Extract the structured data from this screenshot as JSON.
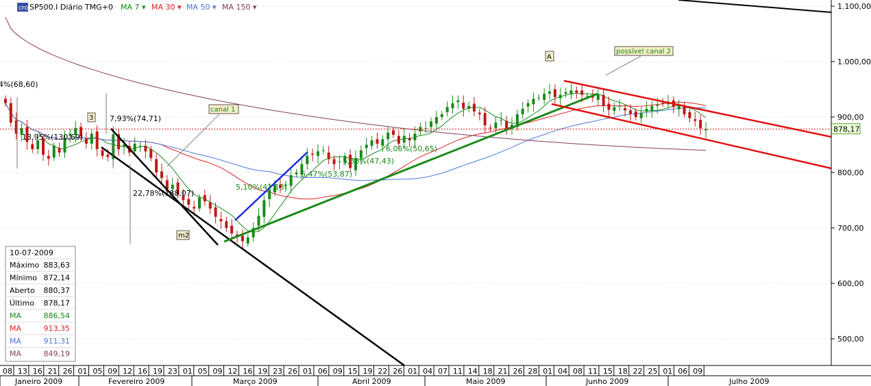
{
  "header": {
    "icon_label": "CFD",
    "symbol": "SP500.I Diário TMG+0",
    "ma_buttons": [
      {
        "label": "MA 7",
        "color": "#1a8a1a"
      },
      {
        "label": "MA 30",
        "color": "#e02020"
      },
      {
        "label": "MA 50",
        "color": "#4a78d8"
      },
      {
        "label": "MA 150",
        "color": "#8a3a5a"
      }
    ]
  },
  "info_box": {
    "date": "10-07-2009",
    "rows": [
      {
        "label": "Máximo",
        "value": "883,63",
        "color": "#000000"
      },
      {
        "label": "Mínimo",
        "value": "872,14",
        "color": "#000000"
      },
      {
        "label": "Aberto",
        "value": "880,37",
        "color": "#000000"
      },
      {
        "label": "Último",
        "value": "878,17",
        "color": "#000000"
      },
      {
        "label": "MA",
        "value": "886,54",
        "color": "#1a8a1a"
      },
      {
        "label": "MA",
        "value": "913,35",
        "color": "#e02020"
      },
      {
        "label": "MA",
        "value": "911,31",
        "color": "#4a78d8"
      },
      {
        "label": "MA",
        "value": "849,19",
        "color": "#8a3a5a"
      }
    ]
  },
  "chart_data": {
    "type": "candlestick",
    "title": "SP500.I Diário TMG+0",
    "y_ticks": [
      "1.100,00",
      "1.000,00",
      "900,00",
      "800,00",
      "700,00",
      "600,00",
      "500,00"
    ],
    "y_tick_values": [
      1100,
      1000,
      900,
      800,
      700,
      600,
      500
    ],
    "ylim": [
      460,
      1110
    ],
    "last_price": {
      "value": 878.17,
      "label": "878,17"
    },
    "x_day_labels": [
      "08",
      "13",
      "16",
      "21",
      "26",
      "01",
      "05",
      "09",
      "12",
      "16",
      "19",
      "23",
      "01",
      "05",
      "09",
      "12",
      "16",
      "19",
      "23",
      "26",
      "01",
      "06",
      "09",
      "15",
      "19",
      "22",
      "26",
      "01",
      "04",
      "07",
      "11",
      "14",
      "18",
      "21",
      "26",
      "28",
      "01",
      "04",
      "08",
      "11",
      "15",
      "18",
      "22",
      "25",
      "01",
      "06",
      "09"
    ],
    "months": [
      "Janeiro 2009",
      "Fevereiro 2009",
      "Março 2009",
      "Abril 2009",
      "Maio 2009",
      "Junho 2009",
      "Julho 2009"
    ],
    "annotations": [
      "4%(68,60)",
      "13,95%(130,69)",
      "7,93%(74,71)",
      "22,78%(188,07)",
      "5,10%(41,13)",
      "6,47%(53,87)",
      "5,56%(47,43)",
      "6,06%(50,65)"
    ],
    "labels": [
      "3",
      "canal 1",
      "m2",
      "A",
      "possível canal 2"
    ],
    "close_series": [
      925,
      890,
      870,
      880,
      855,
      842,
      858,
      832,
      825,
      848,
      836,
      862,
      870,
      880,
      865,
      852,
      870,
      842,
      830,
      828,
      869,
      842,
      850,
      836,
      852,
      848,
      838,
      826,
      800,
      790,
      770,
      778,
      760,
      750,
      742,
      735,
      755,
      748,
      735,
      720,
      712,
      700,
      690,
      684,
      676,
      683,
      700,
      722,
      750,
      768,
      778,
      772,
      778,
      795,
      800,
      815,
      830,
      832,
      838,
      840,
      824,
      815,
      820,
      830,
      808,
      826,
      840,
      850,
      858,
      852,
      860,
      872,
      868,
      852,
      866,
      858,
      870,
      882,
      880,
      892,
      900,
      905,
      918,
      925,
      930,
      915,
      920,
      910,
      905,
      885,
      880,
      890,
      895,
      880,
      886,
      905,
      915,
      925,
      933,
      935,
      942,
      946,
      936,
      940,
      945,
      948,
      944,
      940,
      938,
      935,
      940,
      920,
      913,
      918,
      920,
      912,
      906,
      900,
      908,
      915,
      920,
      922,
      925,
      928,
      918,
      920,
      905,
      898,
      893,
      880,
      878
    ]
  }
}
